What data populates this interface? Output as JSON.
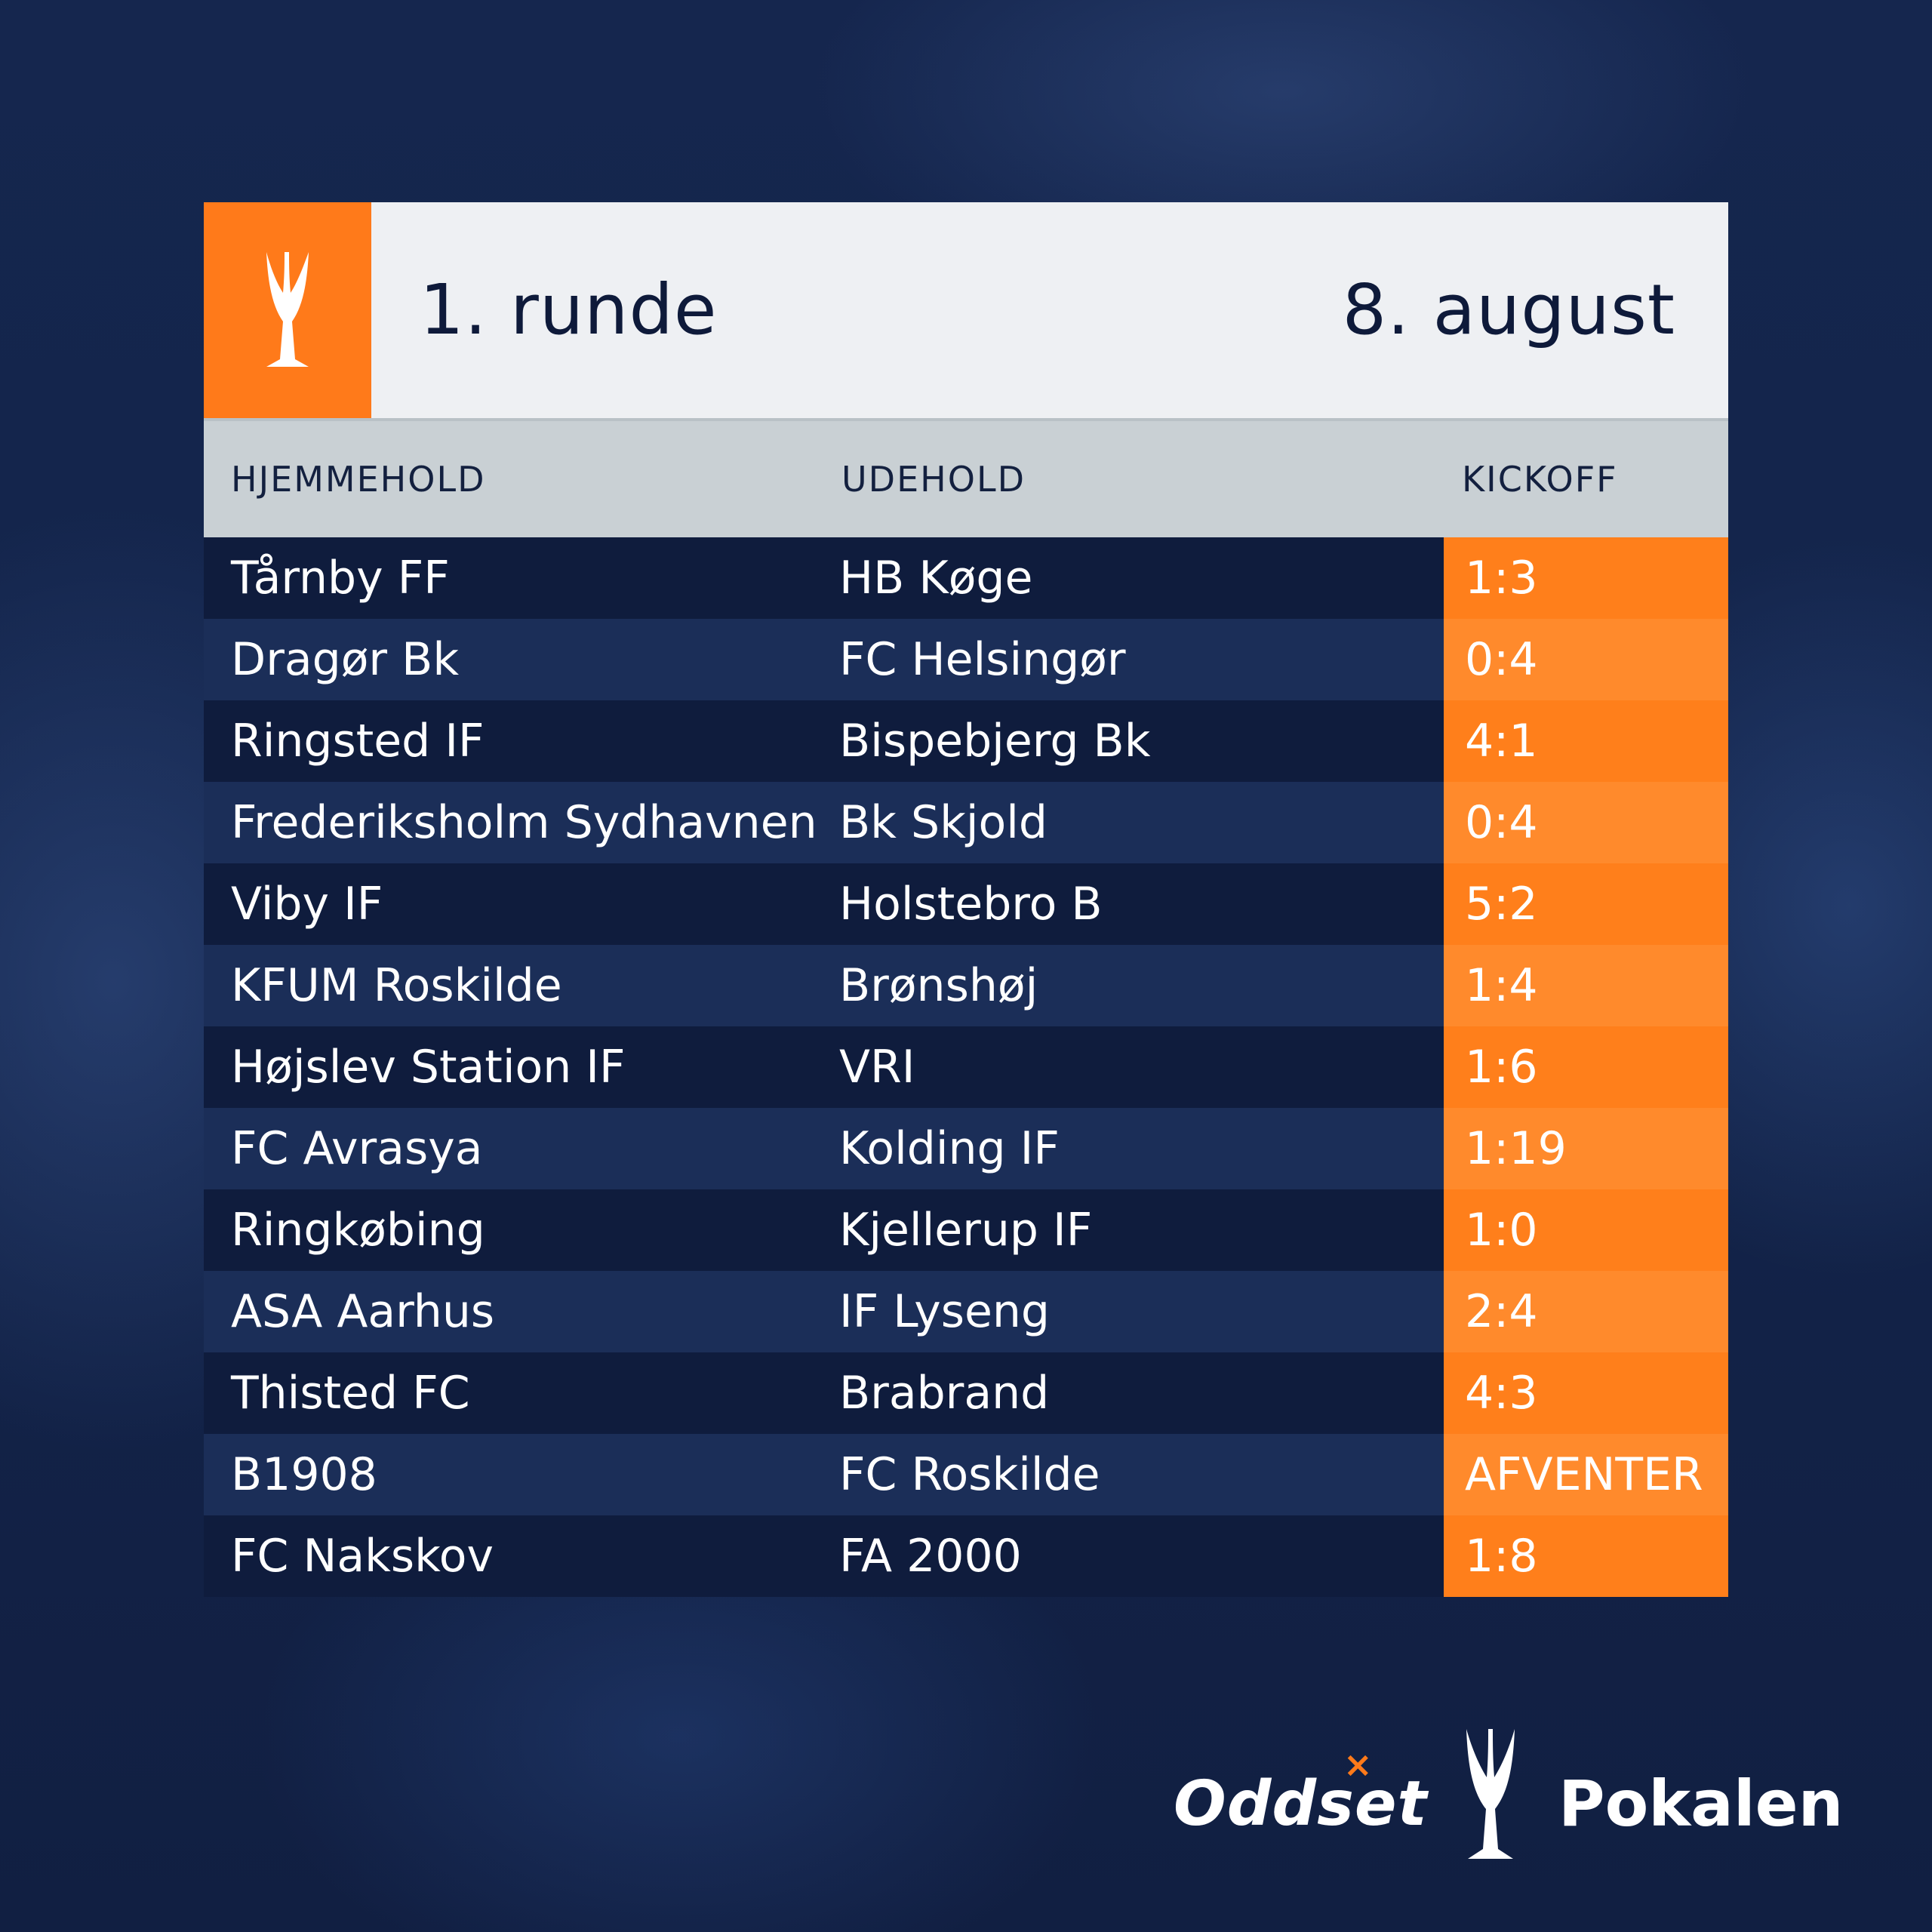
{
  "header": {
    "round": "1. runde",
    "date": "8. august",
    "logo_icon": "trophy-icon"
  },
  "columns": {
    "home": "HJEMMEHOLD",
    "away": "UDEHOLD",
    "kickoff": "KICKOFF"
  },
  "matches": [
    {
      "home": "Tårnby FF",
      "away": "HB Køge",
      "score": "1:3"
    },
    {
      "home": "Dragør Bk",
      "away": "FC Helsingør",
      "score": "0:4"
    },
    {
      "home": "Ringsted IF",
      "away": "Bispebjerg Bk",
      "score": "4:1"
    },
    {
      "home": "Frederiksholm Sydhavnen",
      "away": "Bk Skjold",
      "score": "0:4"
    },
    {
      "home": "Viby IF",
      "away": "Holstebro B",
      "score": "5:2"
    },
    {
      "home": "KFUM Roskilde",
      "away": "Brønshøj",
      "score": "1:4"
    },
    {
      "home": "Højslev Station IF",
      "away": "VRI",
      "score": "1:6"
    },
    {
      "home": "FC Avrasya",
      "away": "Kolding IF",
      "score": "1:19"
    },
    {
      "home": "Ringkøbing",
      "away": "Kjellerup IF",
      "score": "1:0"
    },
    {
      "home": "ASA Aarhus",
      "away": "IF Lyseng",
      "score": "2:4"
    },
    {
      "home": "Thisted FC",
      "away": "Brabrand",
      "score": "4:3"
    },
    {
      "home": "B1908",
      "away": "FC Roskilde",
      "score": "AFVENTER"
    },
    {
      "home": "FC Nakskov",
      "away": "FA 2000",
      "score": "1:8"
    }
  ],
  "footer": {
    "brand": "Oddset",
    "competition": "Pokalen"
  },
  "colors": {
    "accent": "#ff7a1a",
    "header_bg": "#eef0f3",
    "column_header_bg": "#c9d0d4",
    "row_dark": "#0f1c3d",
    "row_light": "#1b2e58",
    "background": "#122248"
  }
}
